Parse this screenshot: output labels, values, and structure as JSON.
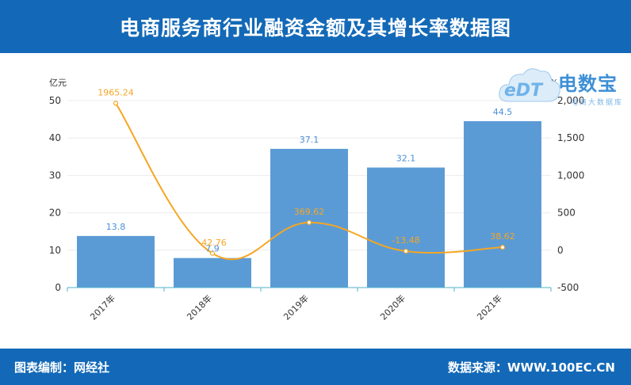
{
  "header": {
    "title": "电商服务商行业融资金额及其增长率数据图"
  },
  "footer": {
    "left": "图表编制：网经社",
    "right": "数据来源：WWW.100EC.CN"
  },
  "logo": {
    "brand": "电数宝",
    "sub": "电商大数据库",
    "mark": "eDT"
  },
  "colors": {
    "header": "#1369b7",
    "bar": "#5b9bd5",
    "line": "#f5a623",
    "bar_label": "#4a90d9",
    "line_label": "#f5a623"
  },
  "chart_data": {
    "type": "bar",
    "categories": [
      "2017年",
      "2018年",
      "2019年",
      "2020年",
      "2021年"
    ],
    "series": [
      {
        "values": [
          13.8,
          7.9,
          37.1,
          32.1,
          44.5
        ],
        "axis": "left",
        "kind": "bar"
      },
      {
        "values": [
          1965.24,
          -42.76,
          369.62,
          -13.48,
          38.62
        ],
        "axis": "right",
        "kind": "line"
      }
    ],
    "bar_labels": [
      "13.8",
      "7.9",
      "37.1",
      "32.1",
      "44.5"
    ],
    "line_labels": [
      "1965.24",
      "-42.76",
      "369.62",
      "-13.48",
      "38.62"
    ],
    "y_left": {
      "unit": "亿元",
      "min": 0,
      "max": 50,
      "ticks": [
        0,
        10,
        20,
        30,
        40,
        50
      ],
      "tick_labels": [
        "0",
        "10",
        "20",
        "30",
        "40",
        "50"
      ]
    },
    "y_right": {
      "unit": "%",
      "min": -500,
      "max": 2000,
      "ticks": [
        -500,
        0,
        500,
        1000,
        1500,
        2000
      ],
      "tick_labels": [
        "-500",
        "0",
        "500",
        "1,000",
        "1,500",
        "2,000"
      ]
    },
    "grid": true
  }
}
